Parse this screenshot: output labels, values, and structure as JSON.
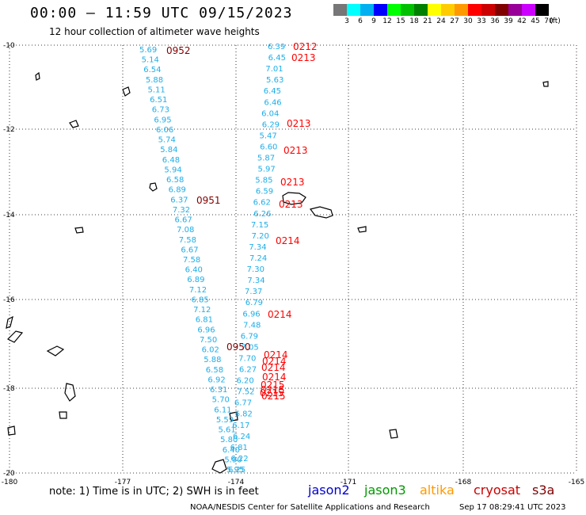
{
  "header": {
    "title": "00:00 — 11:59 UTC 09/15/2023",
    "subtitle": "12 hour collection of altimeter wave heights"
  },
  "legend": {
    "colors": [
      "#777777",
      "#00ffff",
      "#00b0f0",
      "#0000ff",
      "#00ff00",
      "#00c000",
      "#008000",
      "#ffff00",
      "#ffcc00",
      "#ff9900",
      "#ff0000",
      "#cc0000",
      "#800000",
      "#990099",
      "#cc00ff",
      "#000000"
    ],
    "labels": [
      "3",
      "6",
      "9",
      "12",
      "15",
      "18",
      "21",
      "24",
      "27",
      "30",
      "33",
      "36",
      "39",
      "42",
      "45",
      "70",
      "(ft)"
    ]
  },
  "map": {
    "lat_labels": [
      "-10",
      "-12",
      "-14",
      "-16",
      "-18",
      "-20"
    ],
    "lon_labels": [
      "-180",
      "-177",
      "-174",
      "-171",
      "-168",
      "-165"
    ]
  },
  "wave_heights": {
    "track_a": [
      "5.69",
      "5.14",
      "6.54",
      "5.88",
      "5.11",
      "6.51",
      "6.73",
      "6.95",
      "6.06",
      "5.74",
      "5.84",
      "6.48",
      "5.94",
      "6.58",
      "6.89",
      "6.37",
      "7.32",
      "6.67",
      "7.08",
      "7.58",
      "6.67",
      "7.58",
      "6.40",
      "6.89",
      "7.12",
      "6.85",
      "7.12",
      "6.81",
      "6.96",
      "7.50",
      "6.02",
      "5.88",
      "6.58",
      "6.92",
      "6.31",
      "5.70",
      "6.11",
      "5.59",
      "5.61",
      "5.80",
      "6.40",
      "5.90",
      "5.95"
    ],
    "track_b": [
      "6.39",
      "6.45",
      "7.01",
      "5.63",
      "6.45",
      "6.46",
      "6.04",
      "6.29",
      "5.47",
      "6.60",
      "5.87",
      "5.97",
      "5.85",
      "6.59",
      "6.62",
      "6.26",
      "7.15",
      "7.20",
      "7.34",
      "7.24",
      "7.30",
      "7.34",
      "7.37",
      "6.79",
      "6.96",
      "7.48",
      "6.79",
      "7.05",
      "7.70",
      "6.27",
      "6.20",
      "7.52",
      "6.77",
      "6.82",
      "6.17",
      "6.24",
      "6.81",
      "6.22",
      "6.25"
    ]
  },
  "times": {
    "track_a_labels": [
      "0952",
      "0951",
      "0950"
    ],
    "track_b_labels": [
      "0212",
      "0213",
      "0213",
      "0213",
      "0213",
      "0213",
      "0214",
      "0214",
      "0214",
      "0214",
      "0214",
      "0214",
      "0215",
      "0215",
      "0215",
      "0215"
    ]
  },
  "footer": {
    "note": "note:  1) Time is in UTC;  2) SWH is in feet",
    "satellites": [
      {
        "name": "jason2",
        "color": "#0000cc"
      },
      {
        "name": "jason3",
        "color": "#009900"
      },
      {
        "name": "altika",
        "color": "#ff9900"
      },
      {
        "name": "cryosat",
        "color": "#cc0000"
      },
      {
        "name": "s3a",
        "color": "#800000"
      }
    ],
    "center": "NOAA/NESDIS Center for Satellite Applications and Research",
    "timestamp": "Sep 17 08:29:41 UTC 2023"
  }
}
